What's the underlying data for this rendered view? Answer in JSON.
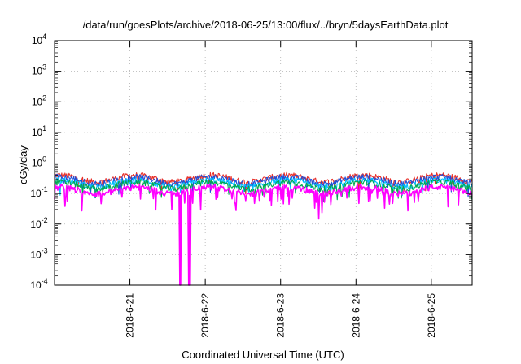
{
  "chart_data": {
    "type": "line",
    "title": "/data/run/goesPlots/archive/2018-06-25/13:00/flux/../bryn/5daysEarthData.plot",
    "xlabel": "Coordinated Universal Time (UTC)",
    "ylabel": "cGy/day",
    "yscale": "log",
    "ylim": [
      0.0001,
      10000
    ],
    "xlim": [
      "2018-06-20 00:00",
      "2018-06-25 13:00"
    ],
    "xticks": [
      "2018-6-21",
      "2018-6-22",
      "2018-6-23",
      "2018-6-24",
      "2018-6-25"
    ],
    "yticks": [
      {
        "base": "10",
        "exp": "-4"
      },
      {
        "base": "10",
        "exp": "-3"
      },
      {
        "base": "10",
        "exp": "-2"
      },
      {
        "base": "10",
        "exp": "-1"
      },
      {
        "base": "10",
        "exp": "0"
      },
      {
        "base": "10",
        "exp": "1"
      },
      {
        "base": "10",
        "exp": "2"
      },
      {
        "base": "10",
        "exp": "3"
      },
      {
        "base": "10",
        "exp": "4"
      }
    ],
    "grid": true,
    "legend": "none",
    "series": [
      {
        "color": "#e8302a",
        "approx_level": 0.32
      },
      {
        "color": "#1f4fd8",
        "approx_level": 0.28
      },
      {
        "color": "#00c0ff",
        "approx_level": 0.22
      },
      {
        "color": "#00a850",
        "approx_level": 0.19
      },
      {
        "color": "#ff00ff",
        "approx_level": 0.13
      }
    ],
    "notable_features": [
      {
        "series_color": "#ff00ff",
        "time": "2018-06-21 16:00",
        "value": 0.0001
      },
      {
        "series_color": "#ff00ff",
        "time": "2018-06-21 19:00",
        "value": 0.0001
      }
    ]
  }
}
